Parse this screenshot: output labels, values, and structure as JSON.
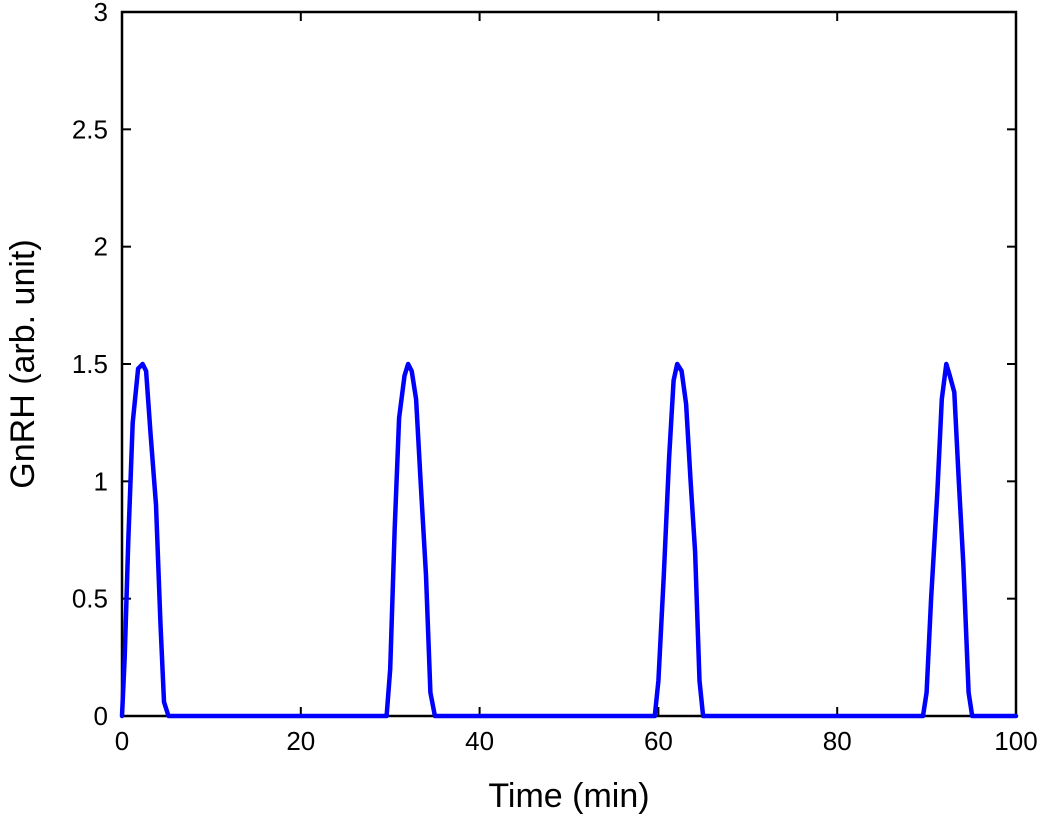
{
  "chart_data": {
    "type": "line",
    "title": "",
    "xlabel": "Time (min)",
    "ylabel": "GnRH (arb. unit)",
    "xlim": [
      0,
      100
    ],
    "ylim": [
      0,
      3
    ],
    "xticks": [
      0,
      20,
      40,
      60,
      80,
      100
    ],
    "xtick_labels": [
      "0",
      "20",
      "40",
      "60",
      "80",
      "100"
    ],
    "yticks": [
      0,
      0.5,
      1,
      1.5,
      2,
      2.5,
      3
    ],
    "ytick_labels": [
      "0",
      "0.5",
      "1",
      "1.5",
      "2",
      "2.5",
      "3"
    ],
    "grid": false,
    "series": [
      {
        "color": "#0000ff",
        "x": [
          0,
          0.3,
          0.7,
          1.2,
          1.8,
          2.3,
          2.7,
          3.2,
          3.8,
          4.3,
          4.7,
          5.2,
          29.6,
          30.0,
          30.5,
          31.0,
          31.6,
          32.0,
          32.4,
          32.9,
          33.4,
          34.0,
          34.5,
          35.0,
          59.6,
          60.0,
          60.6,
          61.2,
          61.7,
          62.1,
          62.6,
          63.1,
          63.6,
          64.1,
          64.6,
          65.0,
          89.6,
          90.0,
          90.5,
          91.2,
          91.7,
          92.2,
          92.6,
          93.1,
          93.6,
          94.1,
          94.7,
          95.1,
          100
        ],
        "values": [
          0,
          0.25,
          0.75,
          1.25,
          1.48,
          1.5,
          1.47,
          1.2,
          0.9,
          0.4,
          0.06,
          0,
          0,
          0.2,
          0.8,
          1.27,
          1.45,
          1.5,
          1.47,
          1.35,
          1.0,
          0.6,
          0.1,
          0,
          0,
          0.15,
          0.6,
          1.1,
          1.43,
          1.5,
          1.47,
          1.33,
          1.0,
          0.7,
          0.15,
          0,
          0,
          0.1,
          0.5,
          0.95,
          1.35,
          1.5,
          1.45,
          1.38,
          1.0,
          0.65,
          0.1,
          0,
          0
        ]
      }
    ]
  }
}
